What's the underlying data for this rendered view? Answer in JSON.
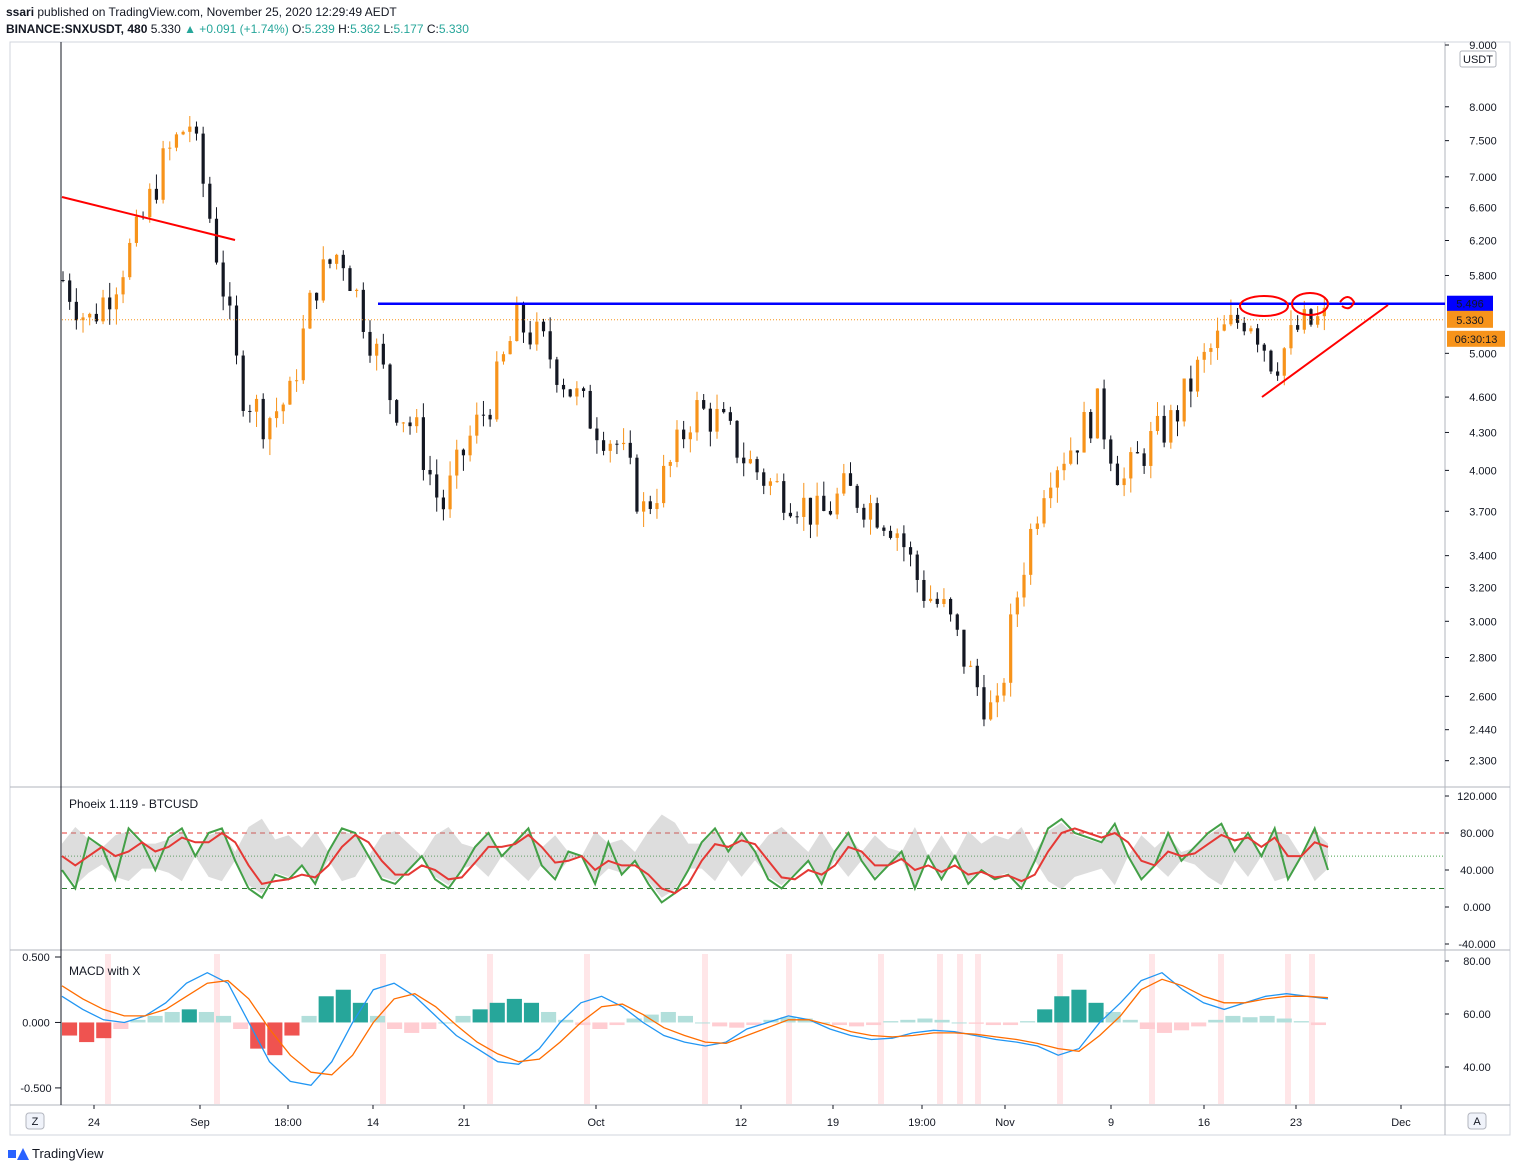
{
  "header": {
    "publisher": "ssari",
    "published_text": "published on TradingView.com, November 25, 2020 12:29:49 AEDT",
    "symbol": "BINANCE:SNXUSDT, 480",
    "last": "5.330",
    "change": "▲ +0.091 (+1.74%)",
    "o_label": "O:",
    "o": "5.239",
    "h_label": "H:",
    "h": "5.362",
    "l_label": "L:",
    "l": "5.177",
    "c_label": "C:",
    "c": "5.330"
  },
  "footer": {
    "brand": "TradingView"
  },
  "buttons": {
    "z": "Z",
    "a": "A"
  },
  "chart_data": [
    {
      "type": "candlestick",
      "currency_label": "USDT",
      "x_ticks": [
        "24",
        "Sep",
        "18:00",
        "14",
        "21",
        "Oct",
        "12",
        "19",
        "19:00",
        "Nov",
        "9",
        "16",
        "23",
        "Dec"
      ],
      "y_ticks": [
        "9.000",
        "8.000",
        "7.500",
        "7.000",
        "6.600",
        "6.200",
        "5.800",
        "5.000",
        "4.600",
        "4.300",
        "4.000",
        "3.700",
        "3.400",
        "3.200",
        "3.000",
        "2.800",
        "2.600",
        "2.440",
        "2.300"
      ],
      "y_scale": "log",
      "ylim": [
        2.2,
        9.0
      ],
      "key_levels": {
        "resistance": "5.496",
        "last_price": "5.330",
        "countdown": "06:30:13"
      },
      "colors": {
        "up": "#f7931a",
        "down": "#131722",
        "resistance": "#0000ff",
        "drawing": "#ff0000"
      },
      "trend_points": [
        [
          "24",
          5.75
        ],
        [
          "26",
          5.3
        ],
        [
          "28",
          5.7
        ],
        [
          "30",
          6.3
        ],
        [
          "Sep 1",
          7.2
        ],
        [
          "Sep 3",
          7.8
        ],
        [
          "Sep 5",
          6.2
        ],
        [
          "Sep 7",
          4.7
        ],
        [
          "Sep 9",
          4.4
        ],
        [
          "Sep 11",
          4.6
        ],
        [
          "Sep 13",
          5.7
        ],
        [
          "14",
          6.1
        ],
        [
          "15",
          5.3
        ],
        [
          "17",
          4.6
        ],
        [
          "19",
          4.3
        ],
        [
          "21",
          3.7
        ],
        [
          "23",
          4.2
        ],
        [
          "25",
          4.6
        ],
        [
          "27",
          5.3
        ],
        [
          "29",
          5.1
        ],
        [
          "Oct 1",
          4.7
        ],
        [
          "Oct 3",
          4.4
        ],
        [
          "Oct 5",
          4.2
        ],
        [
          "Oct 7",
          3.7
        ],
        [
          "Oct 9",
          4.0
        ],
        [
          "Oct 11",
          4.5
        ],
        [
          "Oct 13",
          4.4
        ],
        [
          "Oct 15",
          4.1
        ],
        [
          "Oct 17",
          3.9
        ],
        [
          "19",
          3.8
        ],
        [
          "Oct 21",
          3.65
        ],
        [
          "Oct 23",
          3.85
        ],
        [
          "Oct 25",
          3.75
        ],
        [
          "Oct 27",
          3.6
        ],
        [
          "Oct 29",
          3.2
        ],
        [
          "Oct 31",
          3.05
        ],
        [
          "Nov 2",
          2.7
        ],
        [
          "Nov 4",
          2.48
        ],
        [
          "Nov 6",
          3.3
        ],
        [
          "Nov 8",
          4.0
        ],
        [
          "9",
          4.2
        ],
        [
          "Nov 11",
          4.5
        ],
        [
          "Nov 13",
          3.9
        ],
        [
          "Nov 15",
          4.2
        ],
        [
          "16",
          4.4
        ],
        [
          "Nov 18",
          4.85
        ],
        [
          "Nov 20",
          5.2
        ],
        [
          "Nov 21",
          5.4
        ],
        [
          "Nov 22",
          4.9
        ],
        [
          "23",
          5.25
        ],
        [
          "Nov 24",
          5.33
        ]
      ]
    },
    {
      "type": "line",
      "title": "Phoeix 1.119 - BTCUSD",
      "y_ticks": [
        "120.000",
        "80.000",
        "40.000",
        "0.000",
        "-40.000"
      ],
      "ylim": [
        -40,
        120
      ],
      "levels": [
        80,
        55,
        20
      ],
      "series": [
        {
          "color": "#43a047",
          "values": [
            40,
            20,
            75,
            65,
            30,
            85,
            70,
            40,
            75,
            85,
            55,
            80,
            85,
            50,
            20,
            10,
            35,
            30,
            45,
            25,
            60,
            85,
            80,
            55,
            30,
            25,
            40,
            55,
            30,
            20,
            40,
            65,
            80,
            55,
            70,
            85,
            45,
            30,
            60,
            55,
            25,
            70,
            35,
            50,
            25,
            5,
            15,
            40,
            70,
            85,
            60,
            80,
            60,
            30,
            20,
            35,
            50,
            25,
            60,
            80,
            50,
            30,
            45,
            60,
            20,
            55,
            30,
            55,
            25,
            40,
            30,
            35,
            20,
            50,
            85,
            95,
            80,
            75,
            70,
            90,
            55,
            30,
            45,
            80,
            50,
            65,
            80,
            90,
            60,
            80,
            55,
            85,
            30,
            55,
            85,
            40
          ]
        },
        {
          "color": "#e53935",
          "values": [
            55,
            45,
            55,
            65,
            55,
            60,
            70,
            60,
            65,
            75,
            70,
            70,
            80,
            70,
            45,
            25,
            28,
            30,
            35,
            32,
            45,
            65,
            78,
            70,
            50,
            35,
            35,
            45,
            40,
            30,
            32,
            48,
            65,
            65,
            68,
            78,
            65,
            48,
            50,
            55,
            40,
            50,
            45,
            45,
            35,
            20,
            15,
            25,
            50,
            68,
            65,
            72,
            68,
            50,
            32,
            30,
            40,
            35,
            45,
            65,
            60,
            45,
            45,
            52,
            40,
            45,
            38,
            45,
            35,
            38,
            32,
            34,
            28,
            35,
            60,
            80,
            85,
            80,
            75,
            80,
            70,
            50,
            45,
            60,
            55,
            58,
            68,
            78,
            72,
            75,
            65,
            75,
            55,
            55,
            70,
            65
          ]
        }
      ]
    },
    {
      "type": "bar",
      "title": "MACD with X",
      "y_ticks": [
        "0.500",
        "0.000",
        "-0.500"
      ],
      "right_ticks": [
        "80.00",
        "60.00",
        "40.00"
      ],
      "ylim": [
        -0.6,
        0.5
      ],
      "series": [
        {
          "name": "",
          "color": "#26a69a",
          "values": [
            -0.1,
            -0.15,
            -0.12,
            -0.05,
            0.02,
            0.05,
            0.08,
            0.1,
            0.08,
            0.05,
            -0.05,
            -0.2,
            -0.25,
            -0.1,
            0.05,
            0.2,
            0.25,
            0.15,
            0.05,
            -0.05,
            -0.08,
            -0.05,
            0.0,
            0.05,
            0.1,
            0.15,
            0.18,
            0.15,
            0.08,
            0.02,
            -0.02,
            -0.05,
            -0.02,
            0.03,
            0.06,
            0.08,
            0.05,
            0.0,
            -0.03,
            -0.04,
            -0.02,
            0.02,
            0.04,
            0.03,
            0.0,
            -0.02,
            -0.03,
            -0.02,
            0.01,
            0.02,
            0.03,
            0.02,
            0.0,
            -0.01,
            -0.02,
            -0.02,
            0.01,
            0.1,
            0.2,
            0.25,
            0.15,
            0.08,
            0.02,
            -0.05,
            -0.08,
            -0.06,
            -0.03,
            0.02,
            0.05,
            0.04,
            0.05,
            0.03,
            0.01,
            -0.02
          ]
        },
        {
          "name": "",
          "color": "#2196f3",
          "values": [
            0.2,
            0.1,
            0.02,
            0.0,
            0.05,
            0.15,
            0.3,
            0.38,
            0.3,
            0.0,
            -0.3,
            -0.45,
            -0.48,
            -0.3,
            0.0,
            0.25,
            0.3,
            0.2,
            0.05,
            -0.1,
            -0.2,
            -0.3,
            -0.32,
            -0.2,
            0.0,
            0.15,
            0.2,
            0.12,
            0.0,
            -0.1,
            -0.15,
            -0.18,
            -0.15,
            -0.05,
            0.0,
            0.05,
            0.02,
            -0.05,
            -0.1,
            -0.13,
            -0.12,
            -0.08,
            -0.06,
            -0.07,
            -0.1,
            -0.13,
            -0.15,
            -0.18,
            -0.25,
            -0.2,
            0.0,
            0.15,
            0.32,
            0.38,
            0.25,
            0.15,
            0.1,
            0.15,
            0.2,
            0.22,
            0.2,
            0.18
          ]
        },
        {
          "name": "",
          "color": "#ff6d00",
          "values": [
            0.28,
            0.18,
            0.1,
            0.05,
            0.05,
            0.1,
            0.2,
            0.3,
            0.32,
            0.18,
            -0.05,
            -0.25,
            -0.38,
            -0.4,
            -0.25,
            0.0,
            0.18,
            0.22,
            0.12,
            -0.02,
            -0.15,
            -0.24,
            -0.3,
            -0.28,
            -0.15,
            0.0,
            0.12,
            0.14,
            0.06,
            -0.04,
            -0.1,
            -0.15,
            -0.16,
            -0.1,
            -0.04,
            0.02,
            0.02,
            -0.02,
            -0.07,
            -0.1,
            -0.11,
            -0.1,
            -0.08,
            -0.08,
            -0.09,
            -0.11,
            -0.13,
            -0.16,
            -0.2,
            -0.22,
            -0.1,
            0.05,
            0.25,
            0.33,
            0.28,
            0.2,
            0.15,
            0.15,
            0.18,
            0.2,
            0.2,
            0.19
          ]
        }
      ]
    }
  ]
}
